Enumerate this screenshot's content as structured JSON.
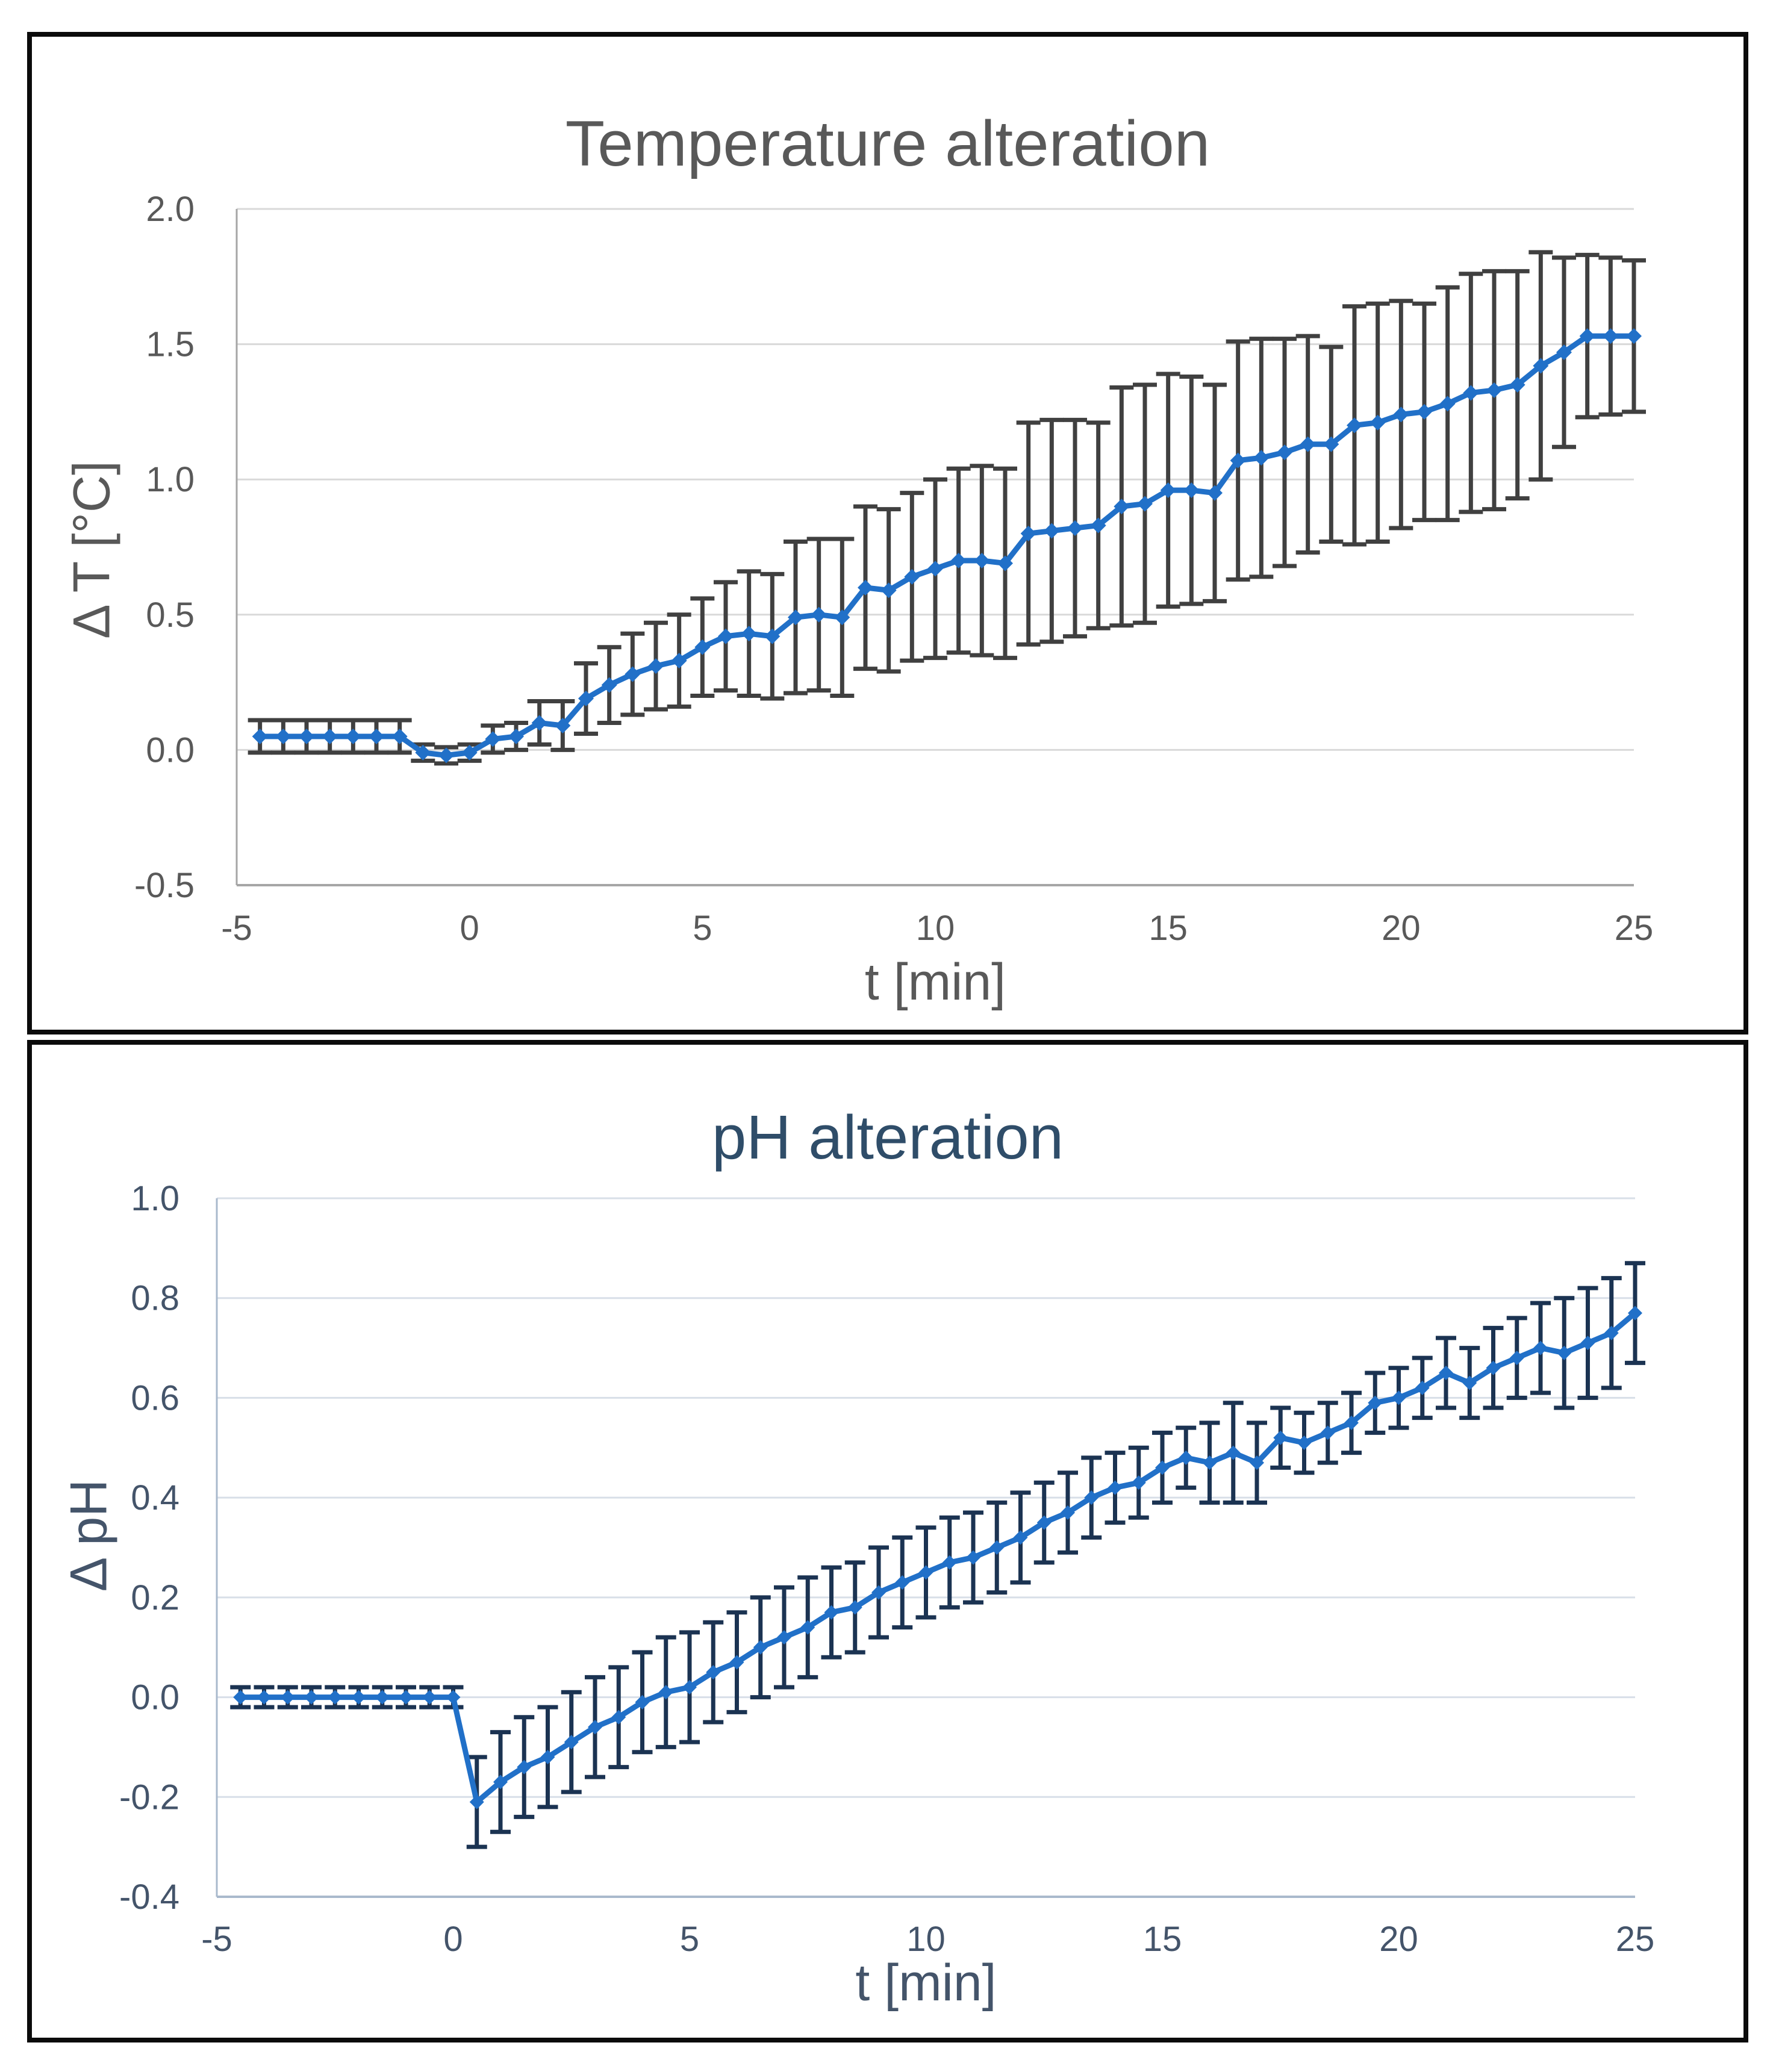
{
  "figure": {
    "panel_count": 2,
    "border_color": "#0B0B0B",
    "background": "#FFFFFF"
  },
  "chart_data": [
    {
      "type": "line",
      "title": "Temperature alteration",
      "xlabel": "t [min]",
      "ylabel": "Δ T [°C]",
      "xlim": [
        -5,
        25
      ],
      "ylim": [
        -0.5,
        2.0
      ],
      "xticks": [
        -5,
        0,
        5,
        10,
        15,
        20,
        25
      ],
      "xtick_labels": [
        "-5",
        "0",
        "5",
        "10",
        "15",
        "20",
        "25"
      ],
      "yticks": [
        2.0,
        1.5,
        1.0,
        0.5,
        0.0,
        -0.5
      ],
      "ytick_labels": [
        "2.0",
        "1.5",
        "1.0",
        "0.5",
        "0.0",
        "-0.5"
      ],
      "grid": true,
      "legend": "none",
      "marker": "diamond",
      "error_bars": "symmetric-vertical",
      "series": [
        {
          "x": [
            -4.5,
            -4,
            -3.5,
            -3,
            -2.5,
            -2,
            -1.5,
            -1,
            -0.5,
            0,
            0.5,
            1,
            1.5,
            2,
            2.5,
            3,
            3.5,
            4,
            4.5,
            5,
            5.5,
            6,
            6.5,
            7,
            7.5,
            8,
            8.5,
            9,
            9.5,
            10,
            10.5,
            11,
            11.5,
            12,
            12.5,
            13,
            13.5,
            14,
            14.5,
            15,
            15.5,
            16,
            16.5,
            17,
            17.5,
            18,
            18.5,
            19,
            19.5,
            20,
            20.5,
            21,
            21.5,
            22,
            22.5,
            23,
            23.5,
            24,
            24.5,
            25
          ],
          "y": [
            0.05,
            0.05,
            0.05,
            0.05,
            0.05,
            0.05,
            0.05,
            -0.01,
            -0.02,
            -0.01,
            0.04,
            0.05,
            0.1,
            0.09,
            0.19,
            0.24,
            0.28,
            0.31,
            0.33,
            0.38,
            0.42,
            0.43,
            0.42,
            0.49,
            0.5,
            0.49,
            0.6,
            0.59,
            0.64,
            0.67,
            0.7,
            0.7,
            0.69,
            0.8,
            0.81,
            0.82,
            0.83,
            0.9,
            0.91,
            0.96,
            0.96,
            0.95,
            1.07,
            1.08,
            1.1,
            1.13,
            1.13,
            1.2,
            1.21,
            1.24,
            1.25,
            1.28,
            1.32,
            1.33,
            1.35,
            1.42,
            1.47,
            1.53,
            1.53,
            1.53
          ],
          "yerr": [
            0.06,
            0.06,
            0.06,
            0.06,
            0.06,
            0.06,
            0.06,
            0.03,
            0.03,
            0.03,
            0.05,
            0.05,
            0.08,
            0.09,
            0.13,
            0.14,
            0.15,
            0.16,
            0.17,
            0.18,
            0.2,
            0.23,
            0.23,
            0.28,
            0.28,
            0.29,
            0.3,
            0.3,
            0.31,
            0.33,
            0.34,
            0.35,
            0.35,
            0.41,
            0.41,
            0.4,
            0.38,
            0.44,
            0.44,
            0.43,
            0.42,
            0.4,
            0.44,
            0.44,
            0.42,
            0.4,
            0.36,
            0.44,
            0.44,
            0.42,
            0.4,
            0.43,
            0.44,
            0.44,
            0.42,
            0.42,
            0.35,
            0.3,
            0.29,
            0.28
          ]
        }
      ],
      "style": {
        "line_color": "#2170C8",
        "error_color": "#404040",
        "grid_color": "#D9D9D9",
        "axis_color": "#A6A6A6",
        "text_color": "#595959",
        "title_color": "#595959"
      }
    },
    {
      "type": "line",
      "title": "pH alteration",
      "xlabel": "t [min]",
      "ylabel": "Δ pH",
      "xlim": [
        -5,
        25
      ],
      "ylim": [
        -0.4,
        1.0
      ],
      "xticks": [
        -5,
        0,
        5,
        10,
        15,
        20,
        25
      ],
      "xtick_labels": [
        "-5",
        "0",
        "5",
        "10",
        "15",
        "20",
        "25"
      ],
      "yticks": [
        1.0,
        0.8,
        0.6,
        0.4,
        0.2,
        0.0,
        -0.2,
        -0.4
      ],
      "ytick_labels": [
        "1.0",
        "0.8",
        "0.6",
        "0.4",
        "0.2",
        "0.0",
        "-0.2",
        "-0.4"
      ],
      "grid": true,
      "legend": "none",
      "marker": "diamond",
      "error_bars": "symmetric-vertical",
      "series": [
        {
          "x": [
            -4.5,
            -4,
            -3.5,
            -3,
            -2.5,
            -2,
            -1.5,
            -1,
            -0.5,
            0,
            0.5,
            1,
            1.5,
            2,
            2.5,
            3,
            3.5,
            4,
            4.5,
            5,
            5.5,
            6,
            6.5,
            7,
            7.5,
            8,
            8.5,
            9,
            9.5,
            10,
            10.5,
            11,
            11.5,
            12,
            12.5,
            13,
            13.5,
            14,
            14.5,
            15,
            15.5,
            16,
            16.5,
            17,
            17.5,
            18,
            18.5,
            19,
            19.5,
            20,
            20.5,
            21,
            21.5,
            22,
            22.5,
            23,
            23.5,
            24,
            24.5,
            25
          ],
          "y": [
            0.0,
            0.0,
            0.0,
            0.0,
            0.0,
            0.0,
            0.0,
            0.0,
            0.0,
            0.0,
            -0.21,
            -0.17,
            -0.14,
            -0.12,
            -0.09,
            -0.06,
            -0.04,
            -0.01,
            0.01,
            0.02,
            0.05,
            0.07,
            0.1,
            0.12,
            0.14,
            0.17,
            0.18,
            0.21,
            0.23,
            0.25,
            0.27,
            0.28,
            0.3,
            0.32,
            0.35,
            0.37,
            0.4,
            0.42,
            0.43,
            0.46,
            0.48,
            0.47,
            0.49,
            0.47,
            0.52,
            0.51,
            0.53,
            0.55,
            0.59,
            0.6,
            0.62,
            0.65,
            0.63,
            0.66,
            0.68,
            0.7,
            0.69,
            0.71,
            0.73,
            0.77
          ],
          "yerr": [
            0.02,
            0.02,
            0.02,
            0.02,
            0.02,
            0.02,
            0.02,
            0.02,
            0.02,
            0.02,
            0.09,
            0.1,
            0.1,
            0.1,
            0.1,
            0.1,
            0.1,
            0.1,
            0.11,
            0.11,
            0.1,
            0.1,
            0.1,
            0.1,
            0.1,
            0.09,
            0.09,
            0.09,
            0.09,
            0.09,
            0.09,
            0.09,
            0.09,
            0.09,
            0.08,
            0.08,
            0.08,
            0.07,
            0.07,
            0.07,
            0.06,
            0.08,
            0.1,
            0.08,
            0.06,
            0.06,
            0.06,
            0.06,
            0.06,
            0.06,
            0.06,
            0.07,
            0.07,
            0.08,
            0.08,
            0.09,
            0.11,
            0.11,
            0.11,
            0.1
          ]
        }
      ],
      "style": {
        "line_color": "#2170C8",
        "error_color": "#1B3352",
        "grid_color": "#D8DFE8",
        "axis_color": "#A9B9CC",
        "text_color": "#44546A",
        "title_color": "#2F4D69"
      }
    }
  ]
}
